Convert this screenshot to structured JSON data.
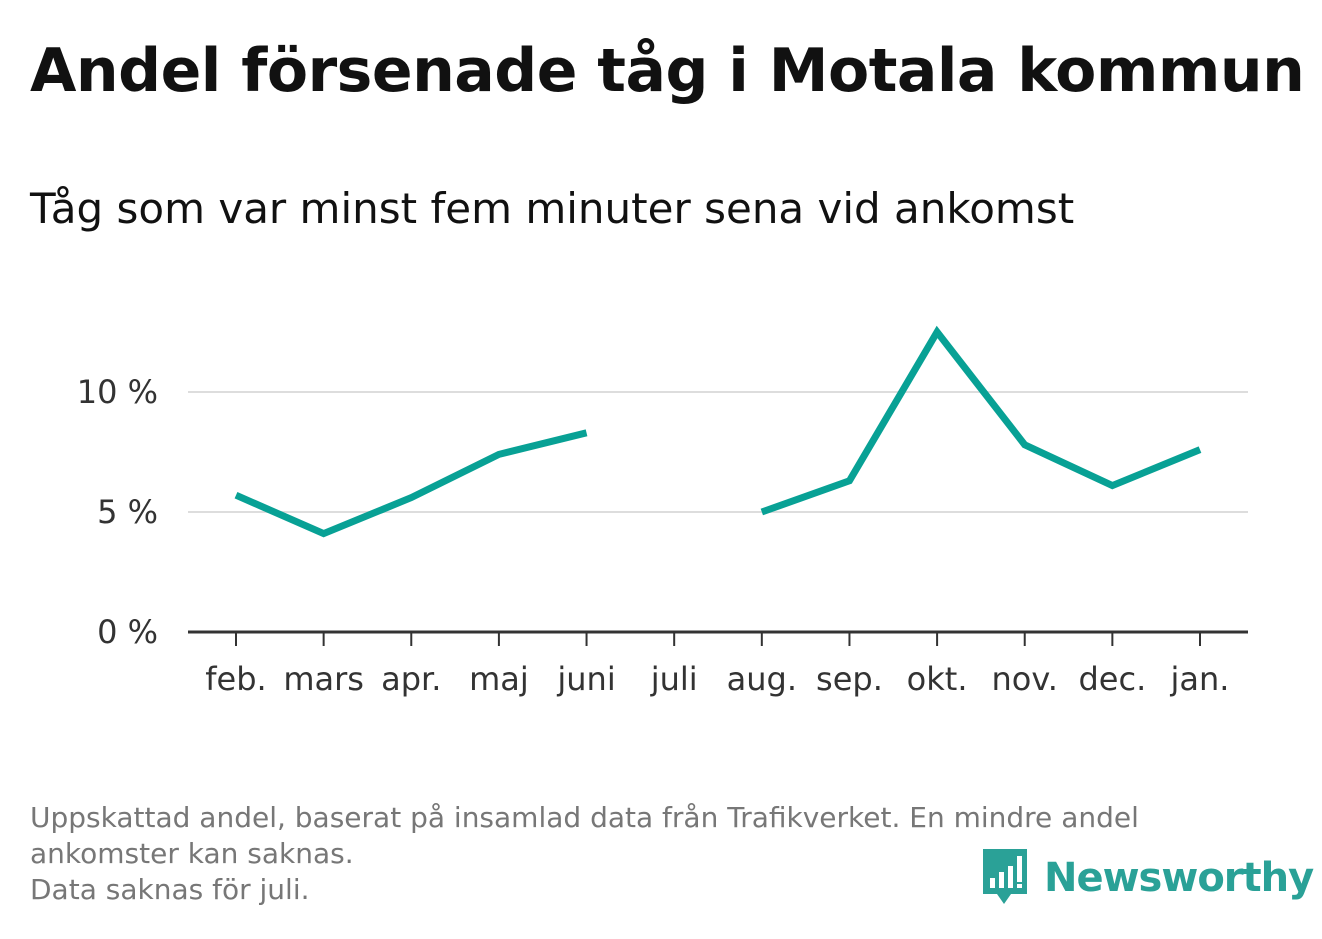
{
  "title": "Andel försenade tåg i Motala kommun",
  "subtitle": "Tåg som var minst fem minuter sena vid ankomst",
  "footnote": [
    "Uppskattad andel, baserat på insamlad data från Trafikverket. En mindre andel",
    "ankomster kan saknas.",
    "Data saknas för juli."
  ],
  "brand": {
    "name": "Newsworthy",
    "icon": "newsworthy-logo-icon",
    "color": "#2aa197"
  },
  "chart_data": {
    "type": "line",
    "title": "Andel försenade tåg i Motala kommun",
    "subtitle": "Tåg som var minst fem minuter sena vid ankomst",
    "xlabel": "",
    "ylabel": "",
    "categories": [
      "feb.",
      "mars",
      "apr.",
      "maj",
      "juni",
      "juli",
      "aug.",
      "sep.",
      "okt.",
      "nov.",
      "dec.",
      "jan."
    ],
    "series": [
      {
        "values": [
          5.7,
          4.1,
          5.6,
          7.4,
          8.3,
          null,
          5.0,
          6.3,
          12.5,
          7.8,
          6.1,
          7.6
        ]
      }
    ],
    "ylim": [
      0,
      12.5
    ],
    "yticks": [
      0,
      5,
      10
    ],
    "ytick_labels": [
      "0 %",
      "5 %",
      "10 %"
    ],
    "grid": true,
    "line_color": "#08a195",
    "grid_color": "#dddddd",
    "axis_color": "#333333"
  }
}
